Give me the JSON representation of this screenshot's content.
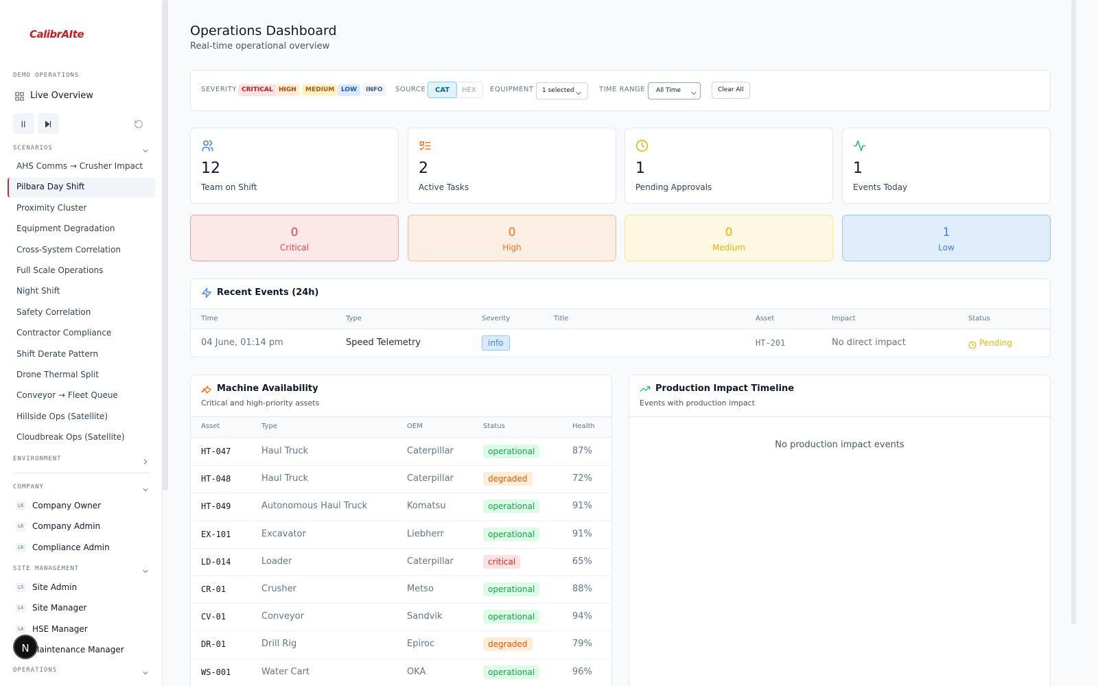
{
  "sidebar": {
    "logo": "CalibrAIte",
    "demo_heading": "DEMO OPERATIONS",
    "live_overview": "Live Overview",
    "scenarios_heading": "SCENARIOS",
    "scenarios": [
      "AHS Comms → Crusher Impact",
      "Pilbara Day Shift",
      "Proximity Cluster",
      "Equipment Degradation",
      "Cross-System Correlation",
      "Full Scale Operations",
      "Night Shift",
      "Safety Correlation",
      "Contractor Compliance",
      "Shift Derate Pattern",
      "Drone Thermal Split",
      "Conveyor → Fleet Queue",
      "Hillside Ops (Satellite)",
      "Cloudbreak Ops (Satellite)"
    ],
    "environment_heading": "ENVIRONMENT",
    "company_heading": "COMPANY",
    "company": [
      {
        "level": "L6",
        "name": "Company Owner"
      },
      {
        "level": "L6",
        "name": "Company Admin"
      },
      {
        "level": "L6",
        "name": "Compliance Admin"
      }
    ],
    "site_heading": "SITE MANAGEMENT",
    "site": [
      {
        "level": "L5",
        "name": "Site Admin"
      },
      {
        "level": "L4",
        "name": "Site Manager"
      },
      {
        "level": "L4",
        "name": "HSE Manager"
      },
      {
        "name": "Maintenance Manager"
      }
    ],
    "operations_heading": "OPERATIONS"
  },
  "avatar": "N",
  "header": {
    "title": "Operations Dashboard",
    "subtitle": "Real-time operational overview"
  },
  "filters": {
    "severity_label": "SEVERITY",
    "severity": [
      "CRITICAL",
      "HIGH",
      "MEDIUM",
      "LOW",
      "INFO"
    ],
    "source_label": "SOURCE",
    "source": [
      "CAT",
      "HEX"
    ],
    "equipment_label": "EQUIPMENT",
    "equipment": "1 selected",
    "time_label": "TIME RANGE",
    "time": "All Time",
    "clear": "Clear All"
  },
  "stats": [
    {
      "value": 12,
      "label": "Team on Shift"
    },
    {
      "value": 2,
      "label": "Active Tasks"
    },
    {
      "value": 1,
      "label": "Pending Approvals"
    },
    {
      "value": 1,
      "label": "Events Today"
    }
  ],
  "severity_counts": [
    {
      "value": 0,
      "label": "Critical"
    },
    {
      "value": 0,
      "label": "High"
    },
    {
      "value": 0,
      "label": "Medium"
    },
    {
      "value": 1,
      "label": "Low"
    }
  ],
  "recent_events": {
    "title": "Recent Events (24h)",
    "columns": [
      "Time",
      "Type",
      "Severity",
      "Title",
      "Asset",
      "Impact",
      "Status"
    ],
    "rows": [
      {
        "time": "04 June, 01:14 pm",
        "type": "Speed Telemetry",
        "severity": "info",
        "asset": "HT-201",
        "impact": "No direct impact",
        "status": "Pending"
      }
    ]
  },
  "machines": {
    "title": "Machine Availability",
    "subtitle": "Critical and high-priority assets",
    "columns": [
      "Asset",
      "Type",
      "OEM",
      "Status",
      "Health"
    ],
    "rows": [
      [
        "HT-047",
        "Haul Truck",
        "Caterpillar",
        "operational",
        "87%"
      ],
      [
        "HT-048",
        "Haul Truck",
        "Caterpillar",
        "degraded",
        "72%"
      ],
      [
        "HT-049",
        "Autonomous Haul Truck",
        "Komatsu",
        "operational",
        "91%"
      ],
      [
        "EX-101",
        "Excavator",
        "Liebherr",
        "operational",
        "91%"
      ],
      [
        "LD-014",
        "Loader",
        "Caterpillar",
        "critical",
        "65%"
      ],
      [
        "CR-01",
        "Crusher",
        "Metso",
        "operational",
        "88%"
      ],
      [
        "CV-01",
        "Conveyor",
        "Sandvik",
        "operational",
        "94%"
      ],
      [
        "DR-01",
        "Drill Rig",
        "Epiroc",
        "degraded",
        "79%"
      ],
      [
        "WS-001",
        "Water Cart",
        "OKA",
        "operational",
        "96%"
      ]
    ]
  },
  "production": {
    "title": "Production Impact Timeline",
    "subtitle": "Events with production impact",
    "empty": "No production impact events"
  }
}
